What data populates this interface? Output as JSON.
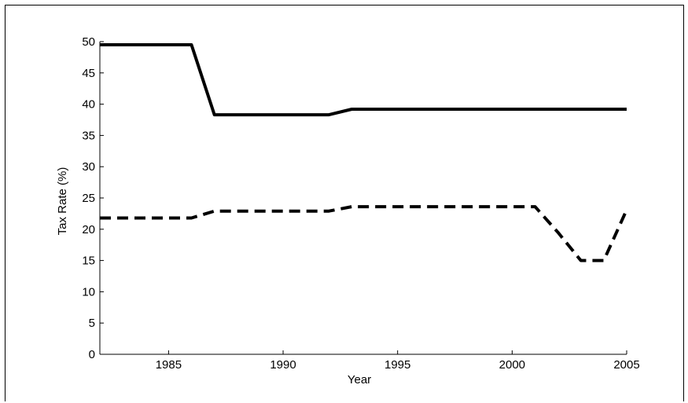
{
  "chart_data": {
    "type": "line",
    "title": "",
    "xlabel": "Year",
    "ylabel": "Tax Rate (%)",
    "xlim": [
      1982,
      2005
    ],
    "ylim": [
      0,
      50
    ],
    "xticks": [
      1985,
      1990,
      1995,
      2000,
      2005
    ],
    "yticks": [
      0,
      5,
      10,
      15,
      20,
      25,
      30,
      35,
      40,
      45,
      50
    ],
    "grid": false,
    "legend": "none",
    "series": [
      {
        "style": "solid",
        "color": "#000000",
        "x": [
          1982,
          1983,
          1984,
          1985,
          1986,
          1987,
          1988,
          1989,
          1990,
          1991,
          1992,
          1993,
          1994,
          1995,
          1996,
          1997,
          1998,
          1999,
          2000,
          2001,
          2002,
          2003,
          2004,
          2005
        ],
        "y": [
          49.5,
          49.5,
          49.5,
          49.5,
          49.5,
          38.3,
          38.3,
          38.3,
          38.3,
          38.3,
          38.3,
          39.2,
          39.2,
          39.2,
          39.2,
          39.2,
          39.2,
          39.2,
          39.2,
          39.2,
          39.2,
          39.2,
          39.2,
          39.2
        ]
      },
      {
        "style": "dashed",
        "color": "#000000",
        "x": [
          1982,
          1983,
          1984,
          1985,
          1986,
          1987,
          1988,
          1989,
          1990,
          1991,
          1992,
          1993,
          1994,
          1995,
          1996,
          1997,
          1998,
          1999,
          2000,
          2001,
          2002,
          2003,
          2004,
          2005
        ],
        "y": [
          21.8,
          21.8,
          21.8,
          21.8,
          21.8,
          22.9,
          22.9,
          22.9,
          22.9,
          22.9,
          22.9,
          23.6,
          23.6,
          23.6,
          23.6,
          23.6,
          23.6,
          23.6,
          23.6,
          23.6,
          19.5,
          15.0,
          15.0,
          23.1
        ]
      }
    ]
  }
}
